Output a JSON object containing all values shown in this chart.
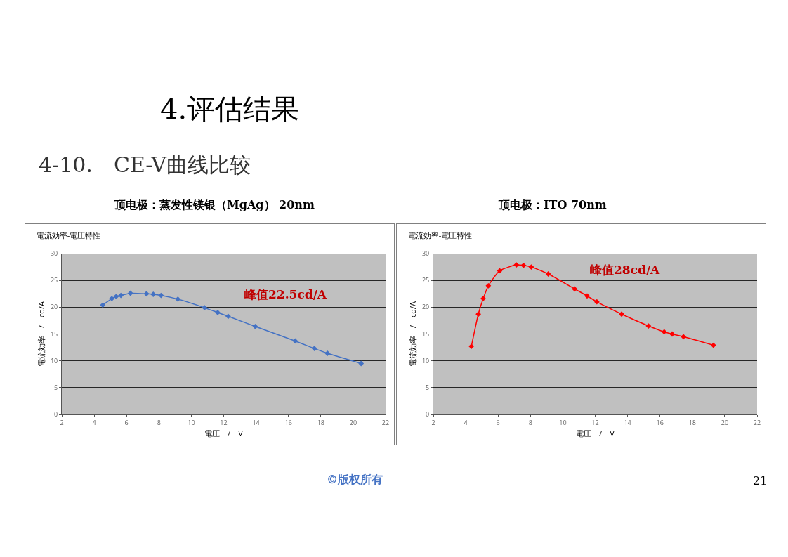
{
  "chart_data": [
    {
      "type": "line",
      "title": "電流効率-電圧特性",
      "subtitle": "顶电极：蒸发性镁银（MgAg） 20nm",
      "xlabel": "電圧　/　V",
      "ylabel": "電流効率　/　cd/A",
      "annotations": [
        "4.评估结果",
        "4-10.　CE-V曲线比较",
        "峰值22.5cd/A"
      ],
      "series": [
        {
          "color": "#4472c4",
          "x": [
            4.53,
            5.09,
            5.36,
            5.65,
            6.24,
            7.23,
            7.65,
            8.13,
            9.17,
            10.82,
            11.63,
            12.28,
            13.95,
            16.42,
            17.6,
            18.41,
            20.49
          ],
          "values": [
            20.4,
            21.6,
            22.0,
            22.2,
            22.6,
            22.5,
            22.4,
            22.2,
            21.5,
            19.9,
            19.0,
            18.3,
            16.4,
            13.7,
            12.3,
            11.4,
            9.5
          ]
        }
      ],
      "xlim": [
        2,
        22
      ],
      "xticks": [
        2,
        4,
        6,
        8,
        10,
        12,
        14,
        16,
        18,
        20,
        22
      ],
      "ylim": [
        0,
        30
      ],
      "yticks": [
        0,
        5,
        10,
        15,
        20,
        25,
        30
      ],
      "grid": "y",
      "marker": "diamond",
      "line_style": "solid"
    },
    {
      "type": "line",
      "title": "電流効率-電圧特性",
      "subtitle": "顶电极：ITO 70nm",
      "xlabel": "電圧　/　V",
      "ylabel": "電流効率　/　cd/A",
      "annotations": [
        "峰值28cd/A",
        "©版权所有",
        "21"
      ],
      "series": [
        {
          "color": "#ff0000",
          "x": [
            4.35,
            4.78,
            5.08,
            5.4,
            6.1,
            7.13,
            7.57,
            8.05,
            9.1,
            10.73,
            11.5,
            12.1,
            13.63,
            15.29,
            16.26,
            16.75,
            17.45,
            19.3
          ],
          "values": [
            12.7,
            18.7,
            21.6,
            24.0,
            26.8,
            27.9,
            27.8,
            27.5,
            26.2,
            23.4,
            22.1,
            21.0,
            18.7,
            16.5,
            15.4,
            15.0,
            14.5,
            12.9
          ]
        }
      ],
      "xlim": [
        2,
        22
      ],
      "xticks": [
        2,
        4,
        6,
        8,
        10,
        12,
        14,
        16,
        18,
        20,
        22
      ],
      "ylim": [
        0,
        30
      ],
      "yticks": [
        0,
        5,
        10,
        15,
        20,
        25,
        30
      ],
      "grid": "y",
      "marker": "diamond",
      "line_style": "solid"
    }
  ]
}
